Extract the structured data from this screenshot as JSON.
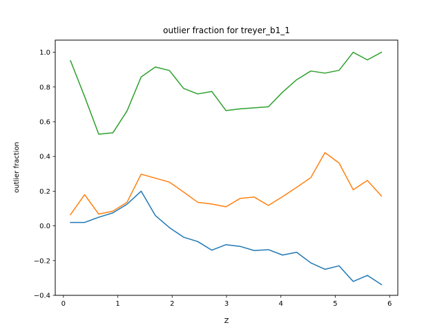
{
  "chart_data": {
    "type": "line",
    "title": "outlier fraction for treyer_b1_1",
    "xlabel": "Z",
    "ylabel": "outlier fraction",
    "xlim": [
      -0.15,
      6.15
    ],
    "ylim": [
      -0.4,
      1.07
    ],
    "xticks": [
      0,
      1,
      2,
      3,
      4,
      5,
      6
    ],
    "xtick_labels": [
      "0",
      "1",
      "2",
      "3",
      "4",
      "5",
      "6"
    ],
    "yticks": [
      -0.4,
      -0.2,
      0.0,
      0.2,
      0.4,
      0.6,
      0.8,
      1.0
    ],
    "ytick_labels": [
      "−0.4",
      "−0.2",
      "0.0",
      "0.2",
      "0.4",
      "0.6",
      "0.8",
      "1.0"
    ],
    "grid": false,
    "legend": false,
    "x": [
      0.13,
      0.39,
      0.65,
      0.91,
      1.17,
      1.43,
      1.69,
      1.95,
      2.21,
      2.47,
      2.73,
      2.99,
      3.25,
      3.51,
      3.77,
      4.03,
      4.29,
      4.55,
      4.81,
      5.07,
      5.33,
      5.59,
      5.85
    ],
    "series": [
      {
        "color": "#1f77b4",
        "values": [
          0.02,
          0.02,
          0.05,
          0.075,
          0.125,
          0.2,
          0.06,
          -0.01,
          -0.065,
          -0.09,
          -0.14,
          -0.108,
          -0.118,
          -0.142,
          -0.137,
          -0.168,
          -0.152,
          -0.213,
          -0.25,
          -0.23,
          -0.32,
          -0.285,
          -0.338
        ]
      },
      {
        "color": "#ff7f0e",
        "values": [
          0.065,
          0.18,
          0.068,
          0.085,
          0.136,
          0.298,
          0.275,
          0.252,
          0.195,
          0.136,
          0.126,
          0.11,
          0.158,
          0.166,
          0.118,
          0.168,
          0.222,
          0.278,
          0.422,
          0.362,
          0.208,
          0.262,
          0.172
        ]
      },
      {
        "color": "#2ca02c",
        "values": [
          0.952,
          0.745,
          0.528,
          0.536,
          0.662,
          0.858,
          0.915,
          0.895,
          0.792,
          0.76,
          0.774,
          0.664,
          0.674,
          0.68,
          0.686,
          0.77,
          0.842,
          0.892,
          0.88,
          0.896,
          1.0,
          0.956,
          1.0
        ]
      }
    ]
  }
}
